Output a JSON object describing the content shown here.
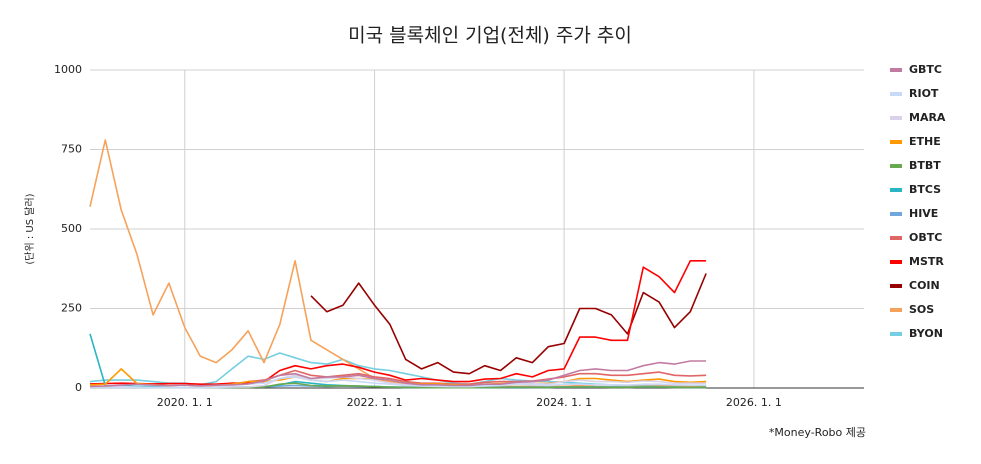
{
  "chart_data": {
    "type": "line",
    "title": "미국 블록체인 기업(전체) 주가 추이",
    "y_label": "(단위 : US 달러)",
    "note": "*Money-Robo 제공",
    "xlim": [
      "2019-01-01",
      "2027-03-01"
    ],
    "xticks": [
      {
        "value": "2020-01-01",
        "label": "2020. 1. 1"
      },
      {
        "value": "2022-01-01",
        "label": "2022. 1. 1"
      },
      {
        "value": "2024-01-01",
        "label": "2024. 1. 1"
      },
      {
        "value": "2026-01-01",
        "label": "2026. 1. 1"
      }
    ],
    "ylim": [
      0,
      1000
    ],
    "yticks": [
      0,
      250,
      500,
      750,
      1000
    ],
    "grid": true,
    "legend": "right",
    "x": [
      "2019-01-01",
      "2019-03-01",
      "2019-05-01",
      "2019-07-01",
      "2019-09-01",
      "2019-11-01",
      "2020-01-01",
      "2020-03-01",
      "2020-05-01",
      "2020-07-01",
      "2020-09-01",
      "2020-11-01",
      "2021-01-01",
      "2021-03-01",
      "2021-05-01",
      "2021-07-01",
      "2021-09-01",
      "2021-11-01",
      "2022-01-01",
      "2022-03-01",
      "2022-05-01",
      "2022-07-01",
      "2022-09-01",
      "2022-11-01",
      "2023-01-01",
      "2023-03-01",
      "2023-05-01",
      "2023-07-01",
      "2023-09-01",
      "2023-11-01",
      "2024-01-01",
      "2024-03-01",
      "2024-05-01",
      "2024-07-01",
      "2024-09-01",
      "2024-11-01",
      "2025-01-01",
      "2025-03-01",
      "2025-05-01",
      "2025-07-01"
    ],
    "series": [
      {
        "name": "GBTC",
        "color": "#c27ba0",
        "values": [
          5,
          6,
          9,
          12,
          9,
          8,
          9,
          7,
          9,
          10,
          13,
          22,
          40,
          45,
          30,
          35,
          35,
          40,
          30,
          25,
          15,
          10,
          10,
          8,
          8,
          12,
          12,
          18,
          20,
          25,
          40,
          55,
          60,
          55,
          55,
          70,
          80,
          75,
          85,
          85
        ]
      },
      {
        "name": "RIOT",
        "color": "#c9daf8",
        "values": [
          3,
          3,
          4,
          3,
          2,
          2,
          2,
          2,
          3,
          8,
          12,
          15,
          30,
          35,
          25,
          20,
          25,
          20,
          15,
          12,
          8,
          6,
          5,
          4,
          4,
          6,
          8,
          12,
          10,
          8,
          12,
          12,
          10,
          10,
          9,
          12,
          12,
          10,
          9,
          9
        ]
      },
      {
        "name": "MARA",
        "color": "#d9d2e9",
        "values": [
          2,
          2,
          2,
          2,
          2,
          2,
          2,
          2,
          2,
          3,
          3,
          8,
          30,
          40,
          30,
          30,
          35,
          30,
          25,
          15,
          10,
          8,
          8,
          5,
          5,
          10,
          10,
          15,
          15,
          12,
          20,
          25,
          20,
          20,
          18,
          22,
          20,
          15,
          15,
          15
        ]
      },
      {
        "name": "ETHE",
        "color": "#ff9900",
        "values": [
          10,
          12,
          60,
          14,
          10,
          8,
          9,
          7,
          8,
          12,
          20,
          20,
          25,
          35,
          25,
          20,
          30,
          30,
          28,
          25,
          15,
          12,
          13,
          10,
          8,
          12,
          14,
          15,
          15,
          14,
          20,
          30,
          30,
          25,
          20,
          25,
          28,
          20,
          18,
          20
        ]
      },
      {
        "name": "BTBT",
        "color": "#6aa84f",
        "values": [
          2,
          2,
          2,
          2,
          2,
          2,
          2,
          2,
          2,
          2,
          2,
          3,
          12,
          15,
          8,
          6,
          7,
          6,
          4,
          3,
          2,
          2,
          1,
          1,
          1,
          2,
          2,
          3,
          2,
          2,
          3,
          3,
          3,
          2,
          2,
          3,
          3,
          2,
          2,
          2
        ]
      },
      {
        "name": "BTCS",
        "color": "#2bb5c3",
        "values": [
          170,
          8,
          6,
          5,
          4,
          3,
          2,
          2,
          2,
          3,
          3,
          4,
          10,
          20,
          15,
          10,
          8,
          6,
          5,
          3,
          2,
          2,
          2,
          2,
          2,
          2,
          2,
          2,
          2,
          2,
          3,
          3,
          3,
          3,
          2,
          3,
          3,
          3,
          2,
          3
        ]
      },
      {
        "name": "HIVE",
        "color": "#6fa8dc",
        "values": [
          1,
          1,
          1,
          1,
          1,
          1,
          1,
          1,
          1,
          2,
          3,
          3,
          6,
          8,
          6,
          5,
          6,
          5,
          4,
          3,
          3,
          2,
          2,
          2,
          2,
          2,
          3,
          3,
          3,
          3,
          3,
          3,
          3,
          3,
          3,
          3,
          3,
          2,
          2,
          2
        ]
      },
      {
        "name": "OBTC",
        "color": "#e06666",
        "values": [
          null,
          null,
          null,
          null,
          null,
          null,
          null,
          null,
          null,
          null,
          20,
          25,
          40,
          55,
          40,
          35,
          40,
          45,
          35,
          30,
          20,
          15,
          15,
          12,
          12,
          18,
          20,
          20,
          22,
          28,
          35,
          45,
          45,
          40,
          40,
          45,
          50,
          40,
          38,
          40
        ]
      },
      {
        "name": "MSTR",
        "color": "#ff0000",
        "values": [
          13,
          14,
          15,
          14,
          13,
          14,
          14,
          12,
          12,
          15,
          16,
          20,
          55,
          70,
          60,
          70,
          75,
          65,
          50,
          40,
          25,
          30,
          25,
          20,
          20,
          28,
          30,
          45,
          35,
          55,
          60,
          160,
          160,
          150,
          150,
          380,
          350,
          300,
          400,
          400
        ]
      },
      {
        "name": "COIN",
        "color": "#980000",
        "values": [
          null,
          null,
          null,
          null,
          null,
          null,
          null,
          null,
          null,
          null,
          null,
          null,
          null,
          null,
          290,
          240,
          260,
          330,
          260,
          200,
          90,
          60,
          80,
          50,
          45,
          70,
          55,
          95,
          80,
          130,
          140,
          250,
          250,
          230,
          170,
          300,
          270,
          190,
          240,
          360
        ]
      },
      {
        "name": "SOS",
        "color": "#f6a25b",
        "values": [
          570,
          780,
          560,
          420,
          230,
          330,
          190,
          100,
          80,
          120,
          180,
          80,
          200,
          400,
          150,
          120,
          90,
          60,
          30,
          20,
          12,
          10,
          8,
          8,
          6,
          6,
          5,
          5,
          5,
          5,
          5,
          8,
          5,
          4,
          4,
          5,
          6,
          5,
          5,
          5
        ]
      },
      {
        "name": "BYON",
        "color": "#76cfe0",
        "values": [
          20,
          25,
          25,
          25,
          20,
          15,
          15,
          10,
          20,
          60,
          100,
          90,
          110,
          95,
          80,
          75,
          90,
          70,
          60,
          55,
          45,
          35,
          25,
          15,
          12,
          20,
          30,
          25,
          22,
          20,
          18,
          15,
          12,
          10,
          8,
          8,
          9,
          8,
          7,
          7
        ]
      }
    ]
  }
}
